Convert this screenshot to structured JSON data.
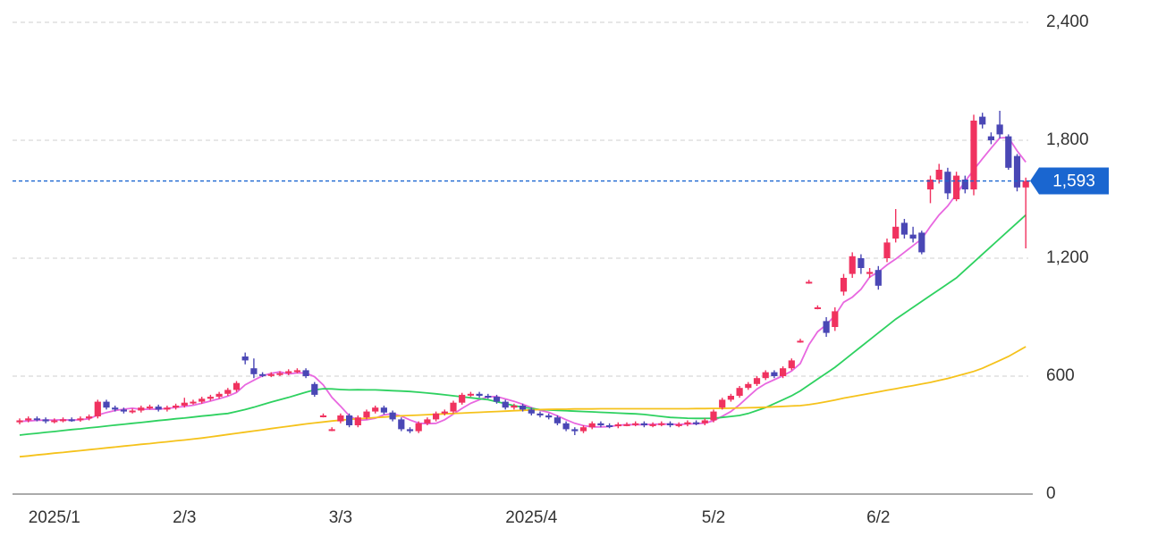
{
  "chart_data": {
    "type": "candlestick",
    "categories": [
      null,
      null,
      null,
      null,
      "2025/1",
      null,
      null,
      null,
      null,
      null,
      null,
      null,
      null,
      null,
      null,
      null,
      null,
      null,
      null,
      "2/3",
      null,
      null,
      null,
      null,
      null,
      null,
      null,
      null,
      null,
      null,
      null,
      null,
      null,
      null,
      null,
      null,
      null,
      "3/3",
      null,
      null,
      null,
      null,
      null,
      null,
      null,
      null,
      null,
      null,
      null,
      null,
      null,
      null,
      null,
      null,
      null,
      null,
      null,
      null,
      null,
      "2025/4",
      null,
      null,
      null,
      null,
      null,
      null,
      null,
      null,
      null,
      null,
      null,
      null,
      null,
      null,
      null,
      null,
      null,
      null,
      null,
      null,
      "5/2",
      null,
      null,
      null,
      null,
      null,
      null,
      null,
      null,
      null,
      null,
      null,
      null,
      null,
      null,
      null,
      null,
      null,
      null,
      "6/2",
      null,
      null,
      null,
      null,
      null,
      null,
      null,
      null,
      null,
      null,
      null,
      null,
      null,
      null,
      null,
      null,
      null
    ],
    "open": [
      365,
      375,
      385,
      380,
      370,
      375,
      380,
      378,
      385,
      395,
      470,
      440,
      430,
      420,
      425,
      440,
      445,
      430,
      440,
      450,
      465,
      470,
      485,
      495,
      510,
      530,
      700,
      640,
      610,
      605,
      610,
      615,
      625,
      630,
      560,
      400,
      330,
      370,
      400,
      350,
      390,
      420,
      440,
      415,
      380,
      330,
      320,
      360,
      380,
      410,
      420,
      465,
      505,
      510,
      500,
      495,
      470,
      440,
      450,
      430,
      410,
      400,
      390,
      360,
      330,
      320,
      340,
      360,
      350,
      345,
      355,
      355,
      360,
      350,
      355,
      360,
      350,
      355,
      365,
      360,
      375,
      440,
      480,
      500,
      540,
      560,
      590,
      620,
      600,
      640,
      780,
      1080,
      950,
      880,
      850,
      1030,
      1120,
      1200,
      1120,
      1140,
      1200,
      1300,
      1380,
      1320,
      1330,
      1550,
      1600,
      1640,
      1500,
      1600,
      1550,
      1920,
      1820,
      1880,
      1820,
      1720,
      1560
    ],
    "high": [
      385,
      395,
      395,
      390,
      385,
      390,
      390,
      395,
      405,
      480,
      480,
      450,
      440,
      435,
      450,
      455,
      455,
      450,
      460,
      490,
      480,
      495,
      505,
      520,
      540,
      575,
      720,
      690,
      620,
      620,
      625,
      635,
      640,
      640,
      570,
      410,
      340,
      410,
      410,
      400,
      430,
      450,
      450,
      425,
      390,
      340,
      370,
      390,
      420,
      430,
      475,
      515,
      520,
      520,
      510,
      505,
      480,
      460,
      460,
      440,
      420,
      410,
      400,
      370,
      340,
      350,
      370,
      370,
      360,
      365,
      365,
      370,
      370,
      365,
      370,
      370,
      365,
      375,
      375,
      385,
      430,
      490,
      510,
      550,
      570,
      600,
      630,
      630,
      650,
      690,
      790,
      1090,
      960,
      900,
      950,
      1120,
      1230,
      1220,
      1150,
      1160,
      1300,
      1450,
      1400,
      1360,
      1340,
      1620,
      1680,
      1660,
      1640,
      1620,
      1930,
      1940,
      1840,
      1950,
      1830,
      1730,
      1610
    ],
    "low": [
      355,
      365,
      370,
      360,
      360,
      365,
      368,
      368,
      375,
      385,
      430,
      420,
      410,
      410,
      415,
      430,
      420,
      420,
      430,
      440,
      455,
      460,
      475,
      485,
      500,
      520,
      660,
      590,
      595,
      595,
      600,
      605,
      615,
      590,
      495,
      390,
      320,
      360,
      340,
      340,
      380,
      410,
      405,
      370,
      320,
      310,
      310,
      350,
      370,
      400,
      410,
      455,
      495,
      490,
      485,
      460,
      430,
      430,
      420,
      400,
      390,
      380,
      350,
      320,
      300,
      310,
      330,
      340,
      335,
      335,
      345,
      345,
      340,
      340,
      345,
      340,
      340,
      345,
      350,
      350,
      365,
      430,
      470,
      490,
      530,
      550,
      580,
      590,
      590,
      630,
      770,
      1070,
      940,
      800,
      830,
      1010,
      1100,
      1120,
      1100,
      1040,
      1180,
      1280,
      1300,
      1280,
      1220,
      1480,
      1580,
      1500,
      1490,
      1530,
      1520,
      1860,
      1780,
      1810,
      1650,
      1540,
      1250
    ],
    "close": [
      375,
      385,
      380,
      370,
      375,
      380,
      378,
      385,
      395,
      470,
      440,
      430,
      420,
      425,
      440,
      445,
      430,
      440,
      450,
      465,
      470,
      485,
      495,
      510,
      530,
      565,
      680,
      610,
      605,
      610,
      615,
      625,
      630,
      600,
      505,
      400,
      330,
      400,
      350,
      390,
      420,
      440,
      415,
      380,
      330,
      320,
      360,
      380,
      410,
      420,
      465,
      505,
      510,
      500,
      495,
      470,
      440,
      450,
      430,
      410,
      400,
      390,
      360,
      330,
      320,
      340,
      360,
      350,
      345,
      355,
      355,
      360,
      350,
      355,
      360,
      350,
      355,
      365,
      360,
      375,
      420,
      480,
      500,
      540,
      560,
      590,
      620,
      600,
      640,
      680,
      780,
      1080,
      950,
      820,
      930,
      1100,
      1210,
      1150,
      1130,
      1060,
      1280,
      1360,
      1320,
      1300,
      1230,
      1600,
      1650,
      1530,
      1620,
      1550,
      1900,
      1880,
      1800,
      1830,
      1660,
      1560,
      1593
    ],
    "up_color": "#f0325f",
    "down_color": "#4a47b5",
    "lines": [
      {
        "color": "#e868e0",
        "values": [
          370,
          372,
          375,
          377,
          377,
          378,
          377,
          378,
          383,
          402,
          415,
          425,
          432,
          437,
          431,
          432,
          432,
          436,
          441,
          446,
          452,
          462,
          473,
          485,
          498,
          517,
          556,
          579,
          602,
          614,
          622,
          611,
          617,
          616,
          597,
          555,
          492,
          447,
          398,
          375,
          378,
          386,
          403,
          409,
          397,
          377,
          361,
          358,
          360,
          378,
          407,
          436,
          462,
          480,
          495,
          496,
          484,
          472,
          457,
          440,
          426,
          416,
          398,
          378,
          360,
          348,
          342,
          342,
          343,
          350,
          353,
          353,
          353,
          355,
          356,
          356,
          354,
          357,
          358,
          361,
          373,
          396,
          420,
          455,
          495,
          534,
          562,
          582,
          602,
          626,
          664,
          760,
          826,
          862,
          908,
          976,
          1002,
          1042,
          1104,
          1130,
          1166,
          1196,
          1230,
          1264,
          1298,
          1362,
          1420,
          1466,
          1526,
          1590,
          1650,
          1706,
          1760,
          1812,
          1814,
          1746,
          1689
        ]
      },
      {
        "color": "#2ed160",
        "values": [
          300,
          305,
          309,
          314,
          318,
          323,
          328,
          332,
          337,
          341,
          346,
          351,
          355,
          360,
          364,
          369,
          374,
          378,
          383,
          387,
          392,
          397,
          401,
          406,
          410,
          420,
          430,
          442,
          455,
          468,
          480,
          492,
          505,
          518,
          530,
          536,
          535,
          532,
          530,
          531,
          530,
          530,
          528,
          526,
          524,
          522,
          518,
          514,
          510,
          505,
          500,
          495,
          490,
          485,
          480,
          470,
          460,
          450,
          442,
          436,
          430,
          428,
          426,
          424,
          422,
          420,
          418,
          416,
          414,
          412,
          410,
          408,
          405,
          400,
          395,
          390,
          388,
          386,
          385,
          385,
          386,
          390,
          395,
          400,
          410,
          425,
          440,
          460,
          480,
          500,
          525,
          555,
          585,
          615,
          645,
          680,
          715,
          750,
          785,
          820,
          855,
          890,
          920,
          950,
          980,
          1010,
          1040,
          1070,
          1100,
          1140,
          1180,
          1220,
          1260,
          1300,
          1340,
          1380,
          1420
        ]
      },
      {
        "color": "#f5c21b",
        "values": [
          190,
          194,
          199,
          203,
          208,
          212,
          217,
          221,
          226,
          230,
          235,
          239,
          244,
          248,
          253,
          257,
          262,
          266,
          271,
          275,
          280,
          285,
          291,
          297,
          303,
          309,
          315,
          321,
          327,
          333,
          339,
          345,
          351,
          357,
          362,
          367,
          372,
          376,
          380,
          383,
          386,
          389,
          392,
          395,
          398,
          400,
          402,
          404,
          406,
          408,
          410,
          412,
          414,
          416,
          418,
          420,
          422,
          424,
          426,
          428,
          430,
          431,
          432,
          432,
          433,
          433,
          433,
          434,
          434,
          434,
          434,
          434,
          434,
          434,
          434,
          434,
          434,
          434,
          435,
          435,
          436,
          436,
          437,
          438,
          439,
          440,
          442,
          444,
          446,
          448,
          450,
          455,
          462,
          470,
          478,
          488,
          496,
          504,
          512,
          520,
          528,
          536,
          544,
          552,
          560,
          568,
          578,
          588,
          600,
          612,
          624,
          640,
          660,
          680,
          700,
          725,
          750
        ]
      }
    ],
    "last_price": {
      "value": 1593,
      "label": "1,593"
    },
    "last_price_color": "#1a66d0",
    "ylim": [
      0,
      2400
    ],
    "yticks": [
      0,
      {
        "value": 600,
        "label": "600"
      },
      {
        "value": 1200,
        "label": "1,200"
      },
      {
        "value": 1800,
        "label": "1,800"
      },
      {
        "value": 2400,
        "label": "2,400"
      }
    ],
    "grid": true
  }
}
